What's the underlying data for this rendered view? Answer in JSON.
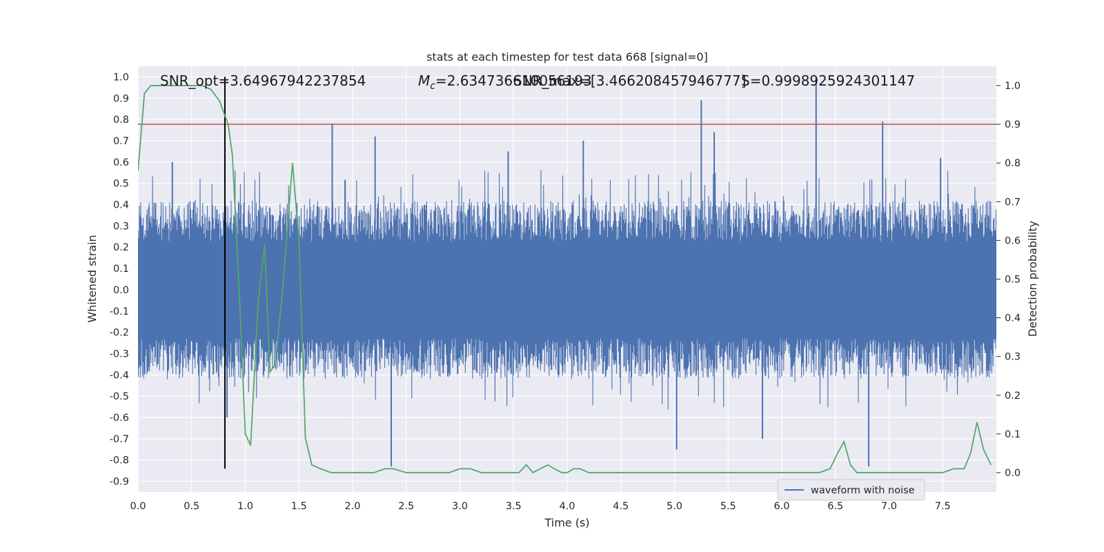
{
  "chart_data": {
    "type": "line",
    "title": "stats at each timestep for test data 668 [signal=0]",
    "xlabel": "Time (s)",
    "ylabel_left": "Whitened strain",
    "ylabel_right": "Detection probability",
    "xlim": [
      0.0,
      8.0
    ],
    "ylim_left": [
      -0.95,
      1.05
    ],
    "ylim_right": [
      -0.05,
      1.05
    ],
    "xticks": [
      "0.0",
      "0.5",
      "1.0",
      "1.5",
      "2.0",
      "2.5",
      "3.0",
      "3.5",
      "4.0",
      "4.5",
      "5.0",
      "5.5",
      "6.0",
      "6.5",
      "7.0",
      "7.5"
    ],
    "yticks_left": [
      "1.0",
      "0.9",
      "0.8",
      "0.7",
      "0.6",
      "0.5",
      "0.4",
      "0.3",
      "0.2",
      "0.1",
      "0.0",
      "-0.1",
      "-0.2",
      "-0.3",
      "-0.4",
      "-0.5",
      "-0.6",
      "-0.7",
      "-0.8",
      "-0.9"
    ],
    "yticks_right": [
      "1.0",
      "0.9",
      "0.8",
      "0.7",
      "0.6",
      "0.5",
      "0.4",
      "0.3",
      "0.2",
      "0.1",
      "0.0"
    ],
    "grid": true,
    "legend": {
      "placement": "lower-center-right",
      "entries": [
        "waveform with noise"
      ]
    },
    "annotations": [
      "SNR_opt=3.64967942237854",
      "$M_c$=2.634736610056193",
      "SNR_max=[3.466208457946777]",
      "S=0.9998925924301147"
    ],
    "threshold_line": {
      "axis": "right",
      "y": 0.9,
      "color": "#c44e52"
    },
    "vertical_marker": {
      "x": 0.81,
      "ymin": -0.84,
      "ymax": 1.0,
      "color": "#000000"
    },
    "series": [
      {
        "name": "waveform with noise",
        "axis": "left",
        "color": "#4c72b0",
        "kind": "noise",
        "envelope_typical": 0.38,
        "spikes": [
          {
            "x": 1.81,
            "y": 0.78
          },
          {
            "x": 2.21,
            "y": 0.72
          },
          {
            "x": 5.25,
            "y": 0.89
          },
          {
            "x": 6.32,
            "y": 1.0
          },
          {
            "x": 6.94,
            "y": 0.79
          },
          {
            "x": 2.36,
            "y": -0.83
          },
          {
            "x": 6.81,
            "y": -0.83
          },
          {
            "x": 5.02,
            "y": -0.75
          },
          {
            "x": 5.82,
            "y": -0.7
          },
          {
            "x": 0.83,
            "y": -0.6
          },
          {
            "x": 0.32,
            "y": 0.6
          },
          {
            "x": 4.15,
            "y": 0.7
          },
          {
            "x": 5.37,
            "y": 0.74
          },
          {
            "x": 3.45,
            "y": 0.65
          },
          {
            "x": 7.48,
            "y": 0.62
          }
        ]
      },
      {
        "name": "",
        "axis": "right",
        "color": "#55a868",
        "x": [
          0.0,
          0.06,
          0.12,
          0.2,
          0.3,
          0.4,
          0.5,
          0.6,
          0.68,
          0.76,
          0.84,
          0.88,
          0.95,
          1.0,
          1.05,
          1.12,
          1.18,
          1.23,
          1.28,
          1.35,
          1.44,
          1.5,
          1.56,
          1.62,
          1.7,
          1.8,
          1.9,
          2.0,
          2.1,
          2.2,
          2.3,
          2.38,
          2.5,
          2.6,
          2.7,
          2.8,
          2.9,
          3.0,
          3.1,
          3.2,
          3.3,
          3.4,
          3.5,
          3.55,
          3.62,
          3.68,
          3.75,
          3.82,
          3.88,
          3.95,
          4.0,
          4.06,
          4.12,
          4.2,
          4.3,
          4.4,
          4.5,
          4.6,
          4.7,
          4.8,
          4.9,
          5.0,
          5.2,
          5.4,
          5.6,
          5.8,
          6.0,
          6.2,
          6.35,
          6.45,
          6.52,
          6.58,
          6.64,
          6.7,
          6.78,
          6.85,
          6.95,
          7.1,
          7.3,
          7.4,
          7.5,
          7.6,
          7.7,
          7.76,
          7.82,
          7.88,
          7.95
        ],
        "y": [
          0.78,
          0.98,
          1.0,
          1.0,
          1.0,
          1.0,
          1.0,
          1.0,
          0.99,
          0.96,
          0.9,
          0.82,
          0.43,
          0.1,
          0.07,
          0.44,
          0.59,
          0.26,
          0.28,
          0.48,
          0.8,
          0.6,
          0.09,
          0.02,
          0.01,
          0.0,
          0.0,
          0.0,
          0.0,
          0.0,
          0.01,
          0.01,
          0.0,
          0.0,
          0.0,
          0.0,
          0.0,
          0.01,
          0.01,
          0.0,
          0.0,
          0.0,
          0.0,
          0.0,
          0.02,
          0.0,
          0.01,
          0.02,
          0.01,
          0.0,
          0.0,
          0.01,
          0.01,
          0.0,
          0.0,
          0.0,
          0.0,
          0.0,
          0.0,
          0.0,
          0.0,
          0.0,
          0.0,
          0.0,
          0.0,
          0.0,
          0.0,
          0.0,
          0.0,
          0.01,
          0.05,
          0.08,
          0.02,
          0.0,
          0.0,
          0.0,
          0.0,
          0.0,
          0.0,
          0.0,
          0.0,
          0.01,
          0.01,
          0.05,
          0.13,
          0.06,
          0.02
        ]
      }
    ]
  }
}
